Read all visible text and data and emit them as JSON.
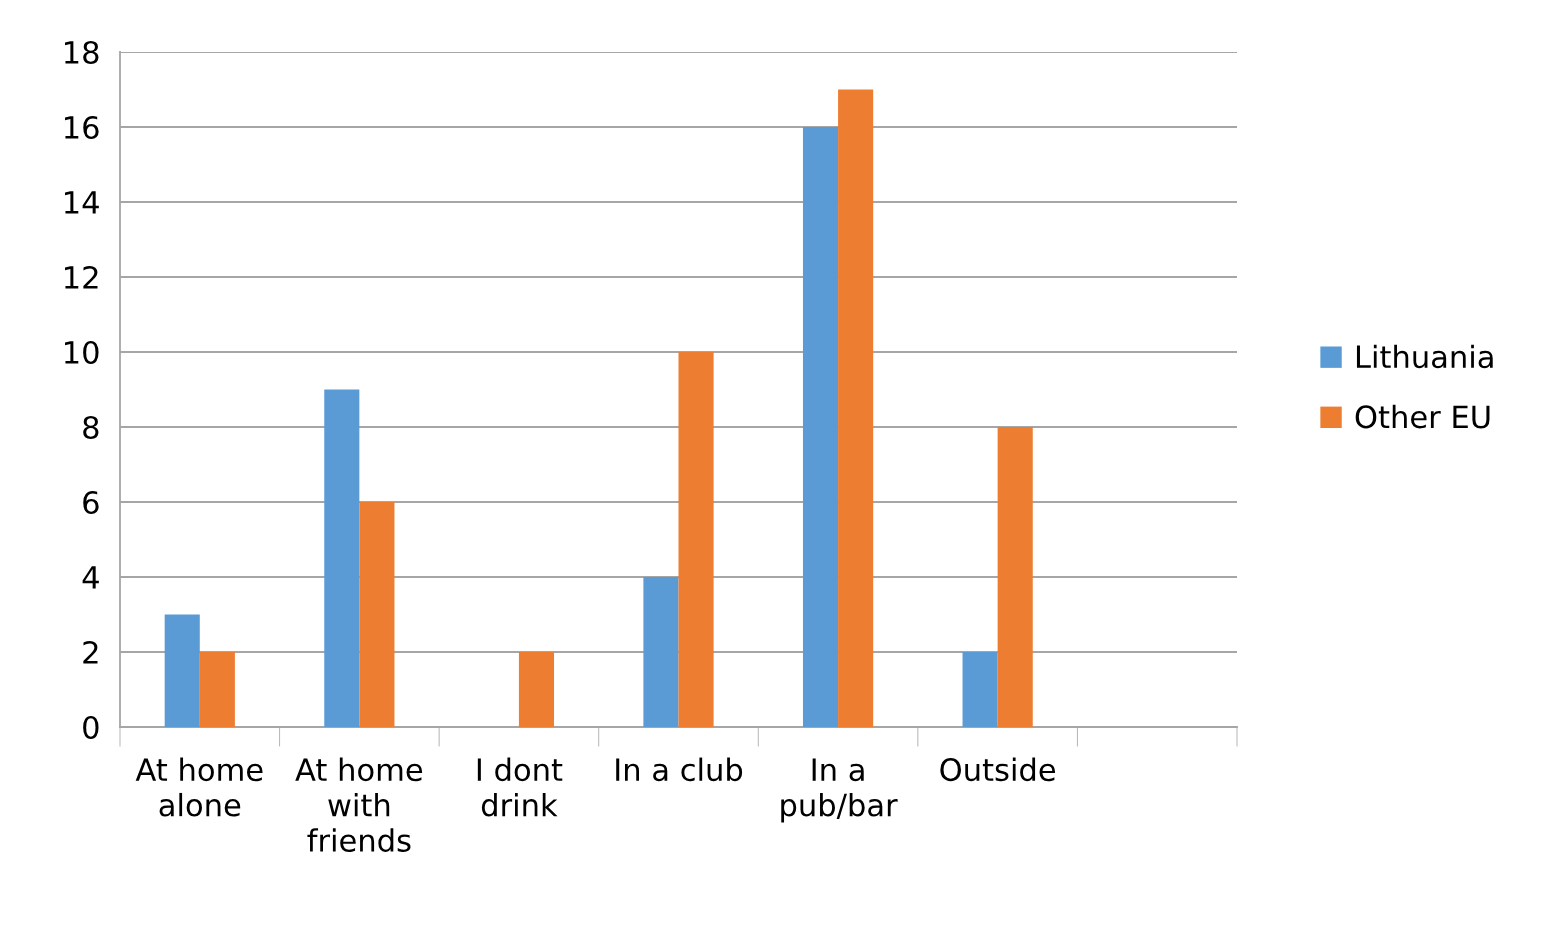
{
  "chart_data": {
    "type": "bar",
    "categories": [
      "At home alone",
      "At home with friends",
      "I dont drink",
      "In a club",
      "In a pub/bar",
      "Outside",
      null
    ],
    "series": [
      {
        "name": "Lithuania",
        "color": "#5b9bd5",
        "values": [
          3,
          9,
          null,
          4,
          16,
          2,
          null
        ]
      },
      {
        "name": "Other EU",
        "color": "#ed7d31",
        "values": [
          2,
          6,
          2,
          10,
          17,
          8,
          null
        ]
      }
    ],
    "ylim": [
      0,
      18
    ],
    "yticks": [
      0,
      2,
      4,
      6,
      8,
      10,
      12,
      14,
      16,
      18
    ],
    "grid": "y",
    "legend": "right"
  }
}
